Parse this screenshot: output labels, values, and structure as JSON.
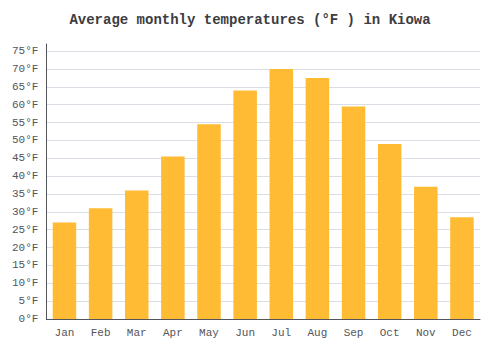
{
  "chart_data": {
    "type": "bar",
    "title": "Average monthly temperatures (°F ) in Kiowa",
    "categories": [
      "Jan",
      "Feb",
      "Mar",
      "Apr",
      "May",
      "Jun",
      "Jul",
      "Aug",
      "Sep",
      "Oct",
      "Nov",
      "Dec"
    ],
    "values": [
      27,
      31,
      36,
      45.5,
      54.5,
      64,
      70,
      67.5,
      59.5,
      49,
      37,
      28.5
    ],
    "color": "#FFBB33",
    "ylim": [
      0,
      77
    ],
    "yticks": [
      {
        "value": 0,
        "label": "0°F"
      },
      {
        "value": 5,
        "label": "5°F"
      },
      {
        "value": 10,
        "label": "10°F"
      },
      {
        "value": 15,
        "label": "15°F"
      },
      {
        "value": 20,
        "label": "20°F"
      },
      {
        "value": 25,
        "label": "25°F"
      },
      {
        "value": 30,
        "label": "30°F"
      },
      {
        "value": 35,
        "label": "35°F"
      },
      {
        "value": 40,
        "label": "40°F"
      },
      {
        "value": 45,
        "label": "45°F"
      },
      {
        "value": 50,
        "label": "50°F"
      },
      {
        "value": 55,
        "label": "55°F"
      },
      {
        "value": 60,
        "label": "60°F"
      },
      {
        "value": 65,
        "label": "65°F"
      },
      {
        "value": 70,
        "label": "70°F"
      },
      {
        "value": 75,
        "label": "75°F"
      }
    ],
    "grid": true
  }
}
